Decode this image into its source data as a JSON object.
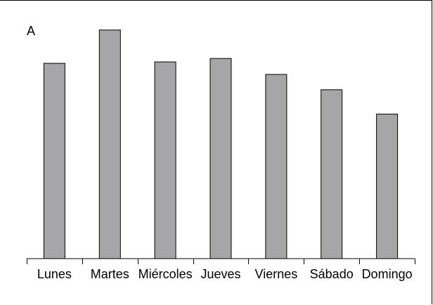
{
  "chart_data": {
    "type": "bar",
    "panel_label": "A",
    "title": "",
    "xlabel": "",
    "ylabel": "",
    "categories": [
      "Lunes",
      "Martes",
      "Miércoles",
      "Jueves",
      "Viernes",
      "Sábado",
      "Domingo"
    ],
    "values": [
      28.1,
      32.9,
      28.3,
      28.8,
      26.5,
      24.3,
      20.8
    ],
    "ylim": [
      0,
      36
    ],
    "grid": false,
    "legend": "none",
    "colors": {
      "bar_fill": "#a6a6a9",
      "bar_stroke": "#000000",
      "axis": "#000000"
    }
  }
}
